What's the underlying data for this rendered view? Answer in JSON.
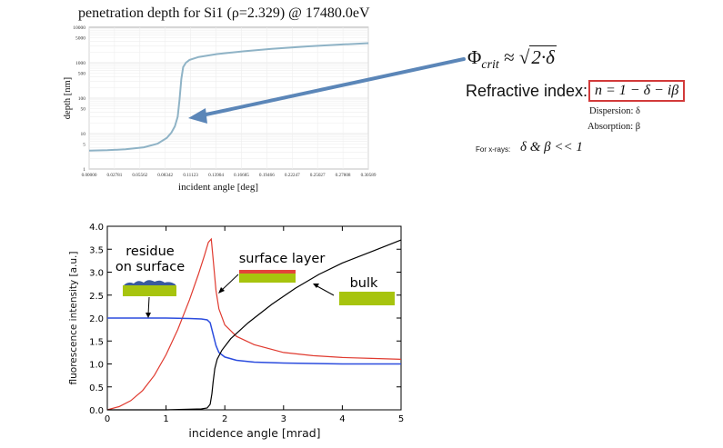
{
  "top_chart": {
    "title": "penetration depth for Si1 (ρ=2.329) @ 17480.0eV",
    "xlabel": "incident angle [deg]",
    "ylabel": "depth [nm]",
    "y_tick_labels": [
      "1",
      "5",
      "10",
      "50",
      "100",
      "500",
      "1000",
      "5000",
      "10000"
    ],
    "x_tick_labels": [
      "0.00000",
      "0.02781",
      "0.05562",
      "0.08342",
      "0.11123",
      "0.13904",
      "0.16685",
      "0.19466",
      "0.22247",
      "0.25027",
      "0.27808",
      "0.30589"
    ]
  },
  "equations": {
    "phi_symbol": "Φ",
    "phi_sub": "crit",
    "approx": " ≈ ",
    "sqrt_sign": "√",
    "sqrt_body": "2·δ",
    "refractive_label": "Refractive index:",
    "refractive_formula": "n = 1 − δ − iβ",
    "dispersion": "Dispersion: δ",
    "absorption": "Absorption: β",
    "xray_label": "For x-rays:",
    "xray_expr": "δ & β << 1"
  },
  "bottom_chart": {
    "xlabel": "incidence angle [mrad]",
    "ylabel": "fluorescence intensity [a.u.]",
    "annotations": {
      "residue_line1": "residue",
      "residue_line2": "on surface",
      "surface_layer": "surface layer",
      "bulk": "bulk"
    }
  },
  "colors": {
    "top_curve": "#8fb3c6",
    "arrow": "#5b86b8",
    "red": "#e03a2f",
    "blue": "#2b4cde",
    "black": "#000000",
    "green_block": "#a7c40e",
    "red_block": "#e3443a",
    "residue_blob": "#3a5a9e",
    "box_red": "#d23a3a"
  },
  "chart_data": [
    {
      "type": "line",
      "title": "penetration depth for Si1 (ρ=2.329) @ 17480.0eV",
      "xlabel": "incident angle [deg]",
      "ylabel": "depth [nm]",
      "y_scale": "log",
      "xlim": [
        0,
        0.30589
      ],
      "ylim": [
        1,
        10000
      ],
      "x_ticks": [
        0,
        0.02781,
        0.05562,
        0.08342,
        0.11123,
        0.13904,
        0.16685,
        0.19466,
        0.22247,
        0.25027,
        0.27808,
        0.30589
      ],
      "y_ticks": [
        1,
        5,
        10,
        50,
        100,
        500,
        1000,
        5000,
        10000
      ],
      "grid": true,
      "series": [
        {
          "x": [
            0,
            0.02,
            0.04,
            0.06,
            0.075,
            0.085,
            0.09,
            0.094,
            0.097,
            0.099,
            0.101,
            0.103,
            0.106,
            0.11,
            0.12,
            0.14,
            0.17,
            0.2,
            0.24,
            0.28,
            0.306
          ],
          "y": [
            3.3,
            3.4,
            3.6,
            4.1,
            5.2,
            7.5,
            10.5,
            16,
            30,
            90,
            350,
            750,
            1000,
            1200,
            1450,
            1750,
            2100,
            2450,
            2900,
            3300,
            3550
          ]
        }
      ]
    },
    {
      "type": "line",
      "xlabel": "incidence angle [mrad]",
      "ylabel": "fluorescence intensity [a.u.]",
      "xlim": [
        0,
        5
      ],
      "ylim": [
        0,
        4.0
      ],
      "x_ticks": [
        0,
        1,
        2,
        3,
        4,
        5
      ],
      "y_ticks": [
        0.0,
        0.5,
        1.0,
        1.5,
        2.0,
        2.5,
        3.0,
        3.5,
        4.0
      ],
      "grid": false,
      "series": [
        {
          "color": "red",
          "x": [
            0,
            0.2,
            0.4,
            0.6,
            0.8,
            1.0,
            1.2,
            1.4,
            1.55,
            1.65,
            1.72,
            1.77,
            1.8,
            1.85,
            1.9,
            2.0,
            2.2,
            2.5,
            3.0,
            3.5,
            4.0,
            4.5,
            5.0
          ],
          "y": [
            0.0,
            0.07,
            0.2,
            0.42,
            0.75,
            1.2,
            1.75,
            2.4,
            2.95,
            3.35,
            3.65,
            3.72,
            3.3,
            2.6,
            2.2,
            1.85,
            1.6,
            1.42,
            1.25,
            1.18,
            1.14,
            1.12,
            1.1
          ]
        },
        {
          "color": "blue",
          "x": [
            0,
            0.5,
            1.0,
            1.4,
            1.6,
            1.7,
            1.75,
            1.8,
            1.85,
            1.9,
            2.0,
            2.2,
            2.5,
            3.0,
            3.5,
            4.0,
            4.5,
            5.0
          ],
          "y": [
            2.0,
            2.0,
            2.0,
            1.99,
            1.98,
            1.96,
            1.9,
            1.65,
            1.4,
            1.25,
            1.15,
            1.08,
            1.04,
            1.02,
            1.01,
            1.0,
            1.0,
            1.0
          ]
        },
        {
          "color": "black",
          "x": [
            0,
            1.0,
            1.6,
            1.7,
            1.75,
            1.78,
            1.8,
            1.83,
            1.87,
            1.95,
            2.1,
            2.4,
            2.8,
            3.2,
            3.6,
            4.0,
            4.5,
            5.0
          ],
          "y": [
            0.0,
            0.0,
            0.02,
            0.04,
            0.12,
            0.35,
            0.6,
            0.9,
            1.1,
            1.3,
            1.55,
            1.9,
            2.3,
            2.65,
            2.95,
            3.2,
            3.45,
            3.7
          ]
        }
      ]
    }
  ]
}
